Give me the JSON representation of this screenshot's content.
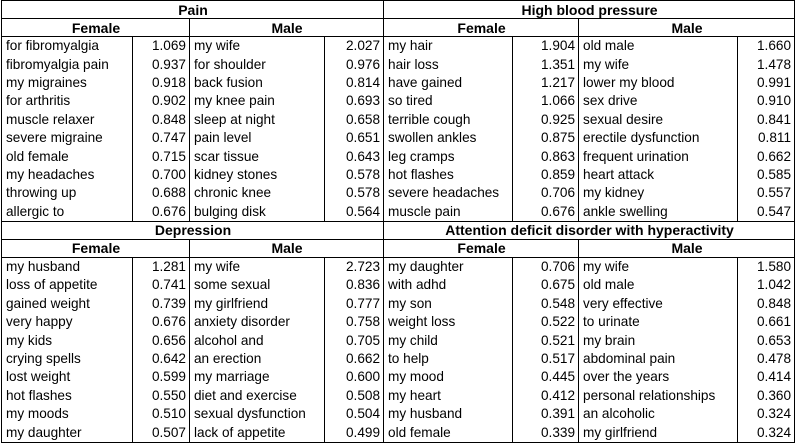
{
  "panels": [
    {
      "title": "Pain",
      "female_label": "Female",
      "male_label": "Male",
      "rows": [
        {
          "f_term": "for fibromyalgia",
          "f_val": "1.069",
          "m_term": "my wife",
          "m_val": "2.027"
        },
        {
          "f_term": "fibromyalgia pain",
          "f_val": "0.937",
          "m_term": "for shoulder",
          "m_val": "0.976"
        },
        {
          "f_term": "my migraines",
          "f_val": "0.918",
          "m_term": "back fusion",
          "m_val": "0.814"
        },
        {
          "f_term": "for arthritis",
          "f_val": "0.902",
          "m_term": "my knee pain",
          "m_val": "0.693"
        },
        {
          "f_term": "muscle relaxer",
          "f_val": "0.848",
          "m_term": "sleep at night",
          "m_val": "0.658"
        },
        {
          "f_term": "severe migraine",
          "f_val": "0.747",
          "m_term": "pain level",
          "m_val": "0.651"
        },
        {
          "f_term": "old female",
          "f_val": "0.715",
          "m_term": "scar tissue",
          "m_val": "0.643"
        },
        {
          "f_term": "my headaches",
          "f_val": "0.700",
          "m_term": "kidney stones",
          "m_val": "0.578"
        },
        {
          "f_term": "throwing up",
          "f_val": "0.688",
          "m_term": "chronic knee",
          "m_val": "0.578"
        },
        {
          "f_term": "allergic to",
          "f_val": "0.676",
          "m_term": "bulging disk",
          "m_val": "0.564"
        }
      ]
    },
    {
      "title": "High blood pressure",
      "female_label": "Female",
      "male_label": "Male",
      "rows": [
        {
          "f_term": "my hair",
          "f_val": "1.904",
          "m_term": "old male",
          "m_val": "1.660"
        },
        {
          "f_term": "hair loss",
          "f_val": "1.351",
          "m_term": "my wife",
          "m_val": "1.478"
        },
        {
          "f_term": "have gained",
          "f_val": "1.217",
          "m_term": "lower my blood",
          "m_val": "0.991"
        },
        {
          "f_term": "so tired",
          "f_val": "1.066",
          "m_term": "sex drive",
          "m_val": "0.910"
        },
        {
          "f_term": "terrible cough",
          "f_val": "0.925",
          "m_term": "sexual desire",
          "m_val": "0.841"
        },
        {
          "f_term": "swollen ankles",
          "f_val": "0.875",
          "m_term": "erectile dysfunction",
          "m_val": "0.811"
        },
        {
          "f_term": "leg cramps",
          "f_val": "0.863",
          "m_term": "frequent urination",
          "m_val": "0.662"
        },
        {
          "f_term": "hot flashes",
          "f_val": "0.859",
          "m_term": "heart attack",
          "m_val": "0.585"
        },
        {
          "f_term": "severe headaches",
          "f_val": "0.706",
          "m_term": "my kidney",
          "m_val": "0.557"
        },
        {
          "f_term": "muscle pain",
          "f_val": "0.676",
          "m_term": "ankle swelling",
          "m_val": "0.547"
        }
      ]
    },
    {
      "title": "Depression",
      "female_label": "Female",
      "male_label": "Male",
      "rows": [
        {
          "f_term": "my husband",
          "f_val": "1.281",
          "m_term": "my wife",
          "m_val": "2.723"
        },
        {
          "f_term": "loss of appetite",
          "f_val": "0.741",
          "m_term": "some sexual",
          "m_val": "0.836"
        },
        {
          "f_term": "gained weight",
          "f_val": "0.739",
          "m_term": "my girlfriend",
          "m_val": "0.777"
        },
        {
          "f_term": "very happy",
          "f_val": "0.676",
          "m_term": "anxiety disorder",
          "m_val": "0.758"
        },
        {
          "f_term": "my kids",
          "f_val": "0.656",
          "m_term": "alcohol and",
          "m_val": "0.705"
        },
        {
          "f_term": "crying spells",
          "f_val": "0.642",
          "m_term": "an erection",
          "m_val": "0.662"
        },
        {
          "f_term": "lost weight",
          "f_val": "0.599",
          "m_term": "my marriage",
          "m_val": "0.600"
        },
        {
          "f_term": "hot flashes",
          "f_val": "0.550",
          "m_term": "diet and exercise",
          "m_val": "0.508"
        },
        {
          "f_term": "my moods",
          "f_val": "0.510",
          "m_term": "sexual dysfunction",
          "m_val": "0.504"
        },
        {
          "f_term": "my daughter",
          "f_val": "0.507",
          "m_term": "lack of appetite",
          "m_val": "0.499"
        }
      ]
    },
    {
      "title": "Attention deficit disorder with hyperactivity",
      "female_label": "Female",
      "male_label": "Male",
      "rows": [
        {
          "f_term": "my daughter",
          "f_val": "0.706",
          "m_term": "my wife",
          "m_val": "1.580"
        },
        {
          "f_term": "with adhd",
          "f_val": "0.675",
          "m_term": "old male",
          "m_val": "1.042"
        },
        {
          "f_term": "my son",
          "f_val": "0.548",
          "m_term": "very effective",
          "m_val": "0.848"
        },
        {
          "f_term": "weight loss",
          "f_val": "0.522",
          "m_term": "to urinate",
          "m_val": "0.661"
        },
        {
          "f_term": "my child",
          "f_val": "0.521",
          "m_term": "my brain",
          "m_val": "0.653"
        },
        {
          "f_term": "to help",
          "f_val": "0.517",
          "m_term": "abdominal pain",
          "m_val": "0.478"
        },
        {
          "f_term": "my mood",
          "f_val": "0.445",
          "m_term": "over the years",
          "m_val": "0.414"
        },
        {
          "f_term": "my heart",
          "f_val": "0.412",
          "m_term": "personal relationships",
          "m_val": "0.360"
        },
        {
          "f_term": "my husband",
          "f_val": "0.391",
          "m_term": "an alcoholic",
          "m_val": "0.324"
        },
        {
          "f_term": "old female",
          "f_val": "0.339",
          "m_term": "my girlfriend",
          "m_val": "0.324"
        }
      ]
    }
  ]
}
